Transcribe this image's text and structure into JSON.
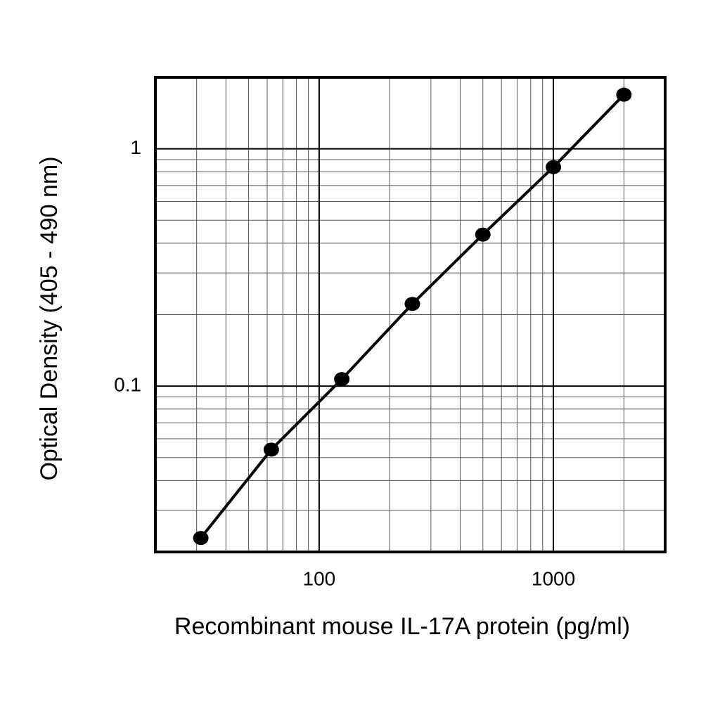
{
  "chart_data": {
    "type": "line",
    "x_label": "Recombinant mouse IL-17A protein (pg/ml)",
    "y_label": "Optical Density (405 - 490 nm)",
    "x": [
      31.25,
      62.5,
      125,
      250,
      500,
      1000,
      2000
    ],
    "series": [
      {
        "color": "#000000",
        "values": [
          0.0229,
          0.054,
          0.107,
          0.222,
          0.435,
          0.837,
          1.69
        ]
      }
    ],
    "xscale": "log",
    "yscale": "log",
    "xlim": [
      20,
      3000
    ],
    "ylim": [
      0.02,
      2
    ],
    "xticks": [
      100,
      1000
    ],
    "yticks": [
      0.1,
      1
    ],
    "xminorticks": [
      30,
      40,
      50,
      60,
      70,
      80,
      90,
      200,
      300,
      400,
      500,
      600,
      700,
      800,
      900,
      2000
    ],
    "yminorticks": [
      0.03,
      0.04,
      0.05,
      0.06,
      0.07,
      0.08,
      0.09,
      0.2,
      0.3,
      0.4,
      0.5,
      0.6,
      0.7,
      0.8,
      0.9
    ],
    "grid": true
  }
}
